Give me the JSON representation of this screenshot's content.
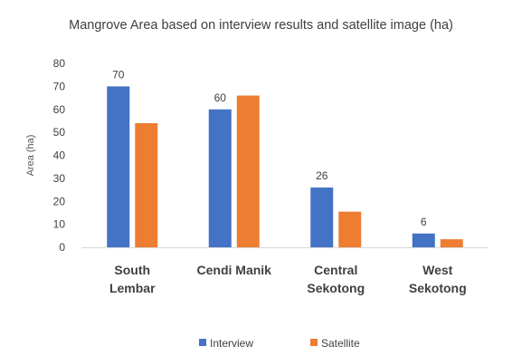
{
  "chart_data": {
    "type": "bar",
    "title": "Mangrove Area based on interview results and satellite image (ha)",
    "ylabel": "Area (ha)",
    "xlabel": "",
    "ylim": [
      0,
      80
    ],
    "yticks": [
      0,
      10,
      20,
      30,
      40,
      50,
      60,
      70,
      80
    ],
    "categories": [
      [
        "South",
        "Lembar"
      ],
      [
        "Cendi Manik"
      ],
      [
        "Central",
        "Sekotong"
      ],
      [
        "West",
        "Sekotong"
      ]
    ],
    "series": [
      {
        "name": "Interview",
        "values": [
          70,
          60,
          26,
          6
        ],
        "color": "#4472C4",
        "labels": [
          "70",
          "60",
          "26",
          "6"
        ]
      },
      {
        "name": "Satellite",
        "values": [
          54,
          66,
          15.5,
          3.5
        ],
        "color": "#ED7D31"
      }
    ],
    "legend_position": "bottom",
    "grid": false
  }
}
